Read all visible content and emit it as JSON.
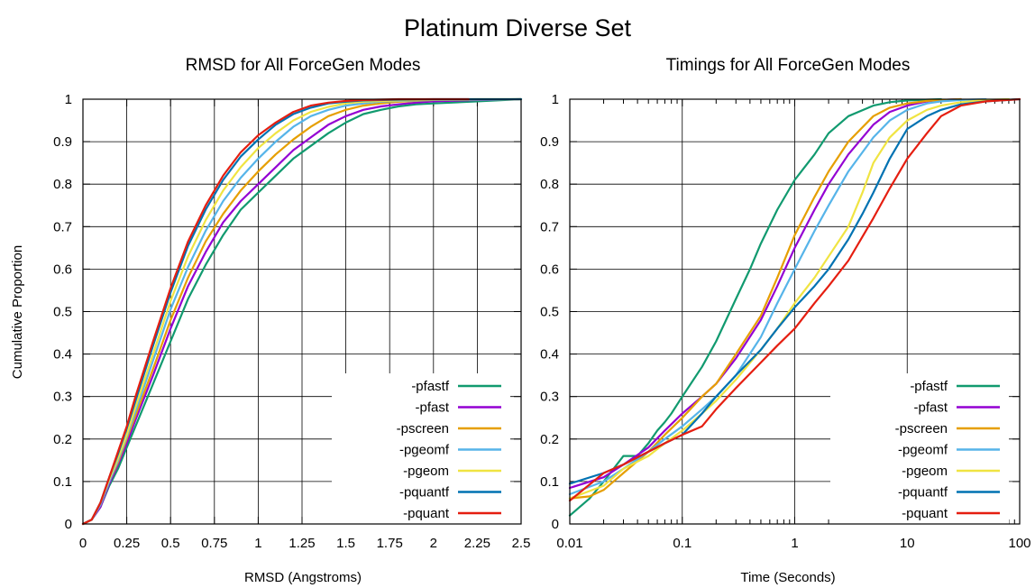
{
  "figure": {
    "title": "Platinum Diverse Set"
  },
  "chart_data": [
    {
      "type": "line",
      "title": "RMSD for All ForceGen Modes",
      "xlabel": "RMSD (Angstroms)",
      "ylabel": "Cumulative Proportion",
      "xscale": "linear",
      "xlim": [
        0,
        2.5
      ],
      "ylim": [
        0,
        1
      ],
      "xticks": [
        0,
        0.25,
        0.5,
        0.75,
        1,
        1.25,
        1.5,
        1.75,
        2,
        2.25,
        2.5
      ],
      "xticklabels": [
        "0",
        "0.25",
        "0.5",
        "0.75",
        "1",
        "1.25",
        "1.5",
        "1.75",
        "2",
        "2.25",
        "2.5"
      ],
      "yticks": [
        0,
        0.1,
        0.2,
        0.3,
        0.4,
        0.5,
        0.6,
        0.7,
        0.8,
        0.9,
        1
      ],
      "yticklabels": [
        "0",
        "0.1",
        "0.2",
        "0.3",
        "0.4",
        "0.5",
        "0.6",
        "0.7",
        "0.8",
        "0.9",
        "1"
      ],
      "grid": true,
      "legend_position": "bottom-right",
      "series": [
        {
          "name": "-pfastf",
          "color": "#119a6f",
          "x": [
            0,
            0.05,
            0.1,
            0.15,
            0.2,
            0.25,
            0.3,
            0.4,
            0.5,
            0.6,
            0.7,
            0.8,
            0.9,
            1.0,
            1.1,
            1.2,
            1.3,
            1.4,
            1.5,
            1.6,
            1.7,
            1.8,
            1.9,
            2.0,
            2.25,
            2.5
          ],
          "y": [
            0,
            0.01,
            0.04,
            0.09,
            0.13,
            0.18,
            0.23,
            0.33,
            0.43,
            0.53,
            0.61,
            0.68,
            0.74,
            0.78,
            0.82,
            0.86,
            0.89,
            0.92,
            0.945,
            0.965,
            0.975,
            0.983,
            0.988,
            0.99,
            0.995,
            1.0
          ]
        },
        {
          "name": "-pfast",
          "color": "#9400d3",
          "x": [
            0,
            0.05,
            0.1,
            0.15,
            0.2,
            0.25,
            0.3,
            0.4,
            0.5,
            0.6,
            0.7,
            0.8,
            0.9,
            1.0,
            1.1,
            1.2,
            1.3,
            1.4,
            1.5,
            1.6,
            1.7,
            1.8,
            1.9,
            2.0,
            2.25,
            2.5
          ],
          "y": [
            0,
            0.01,
            0.04,
            0.095,
            0.14,
            0.19,
            0.245,
            0.35,
            0.46,
            0.56,
            0.64,
            0.71,
            0.76,
            0.8,
            0.84,
            0.88,
            0.91,
            0.94,
            0.96,
            0.975,
            0.983,
            0.988,
            0.992,
            0.995,
            0.998,
            1.0
          ]
        },
        {
          "name": "-pscreen",
          "color": "#e69f00",
          "x": [
            0,
            0.05,
            0.1,
            0.15,
            0.2,
            0.25,
            0.3,
            0.4,
            0.5,
            0.6,
            0.7,
            0.8,
            0.9,
            1.0,
            1.1,
            1.2,
            1.3,
            1.4,
            1.5,
            1.6,
            1.7,
            1.8,
            1.9,
            2.0,
            2.25,
            2.5
          ],
          "y": [
            0,
            0.01,
            0.045,
            0.1,
            0.145,
            0.2,
            0.255,
            0.365,
            0.48,
            0.58,
            0.665,
            0.73,
            0.785,
            0.83,
            0.87,
            0.905,
            0.935,
            0.96,
            0.975,
            0.985,
            0.99,
            0.994,
            0.996,
            0.998,
            0.999,
            1.0
          ]
        },
        {
          "name": "-pgeomf",
          "color": "#56b4e9",
          "x": [
            0,
            0.05,
            0.1,
            0.15,
            0.2,
            0.25,
            0.3,
            0.4,
            0.5,
            0.6,
            0.7,
            0.8,
            0.9,
            1.0,
            1.1,
            1.2,
            1.3,
            1.4,
            1.5,
            1.6,
            1.7,
            1.8,
            2.0,
            2.25,
            2.5
          ],
          "y": [
            0,
            0.01,
            0.045,
            0.1,
            0.15,
            0.205,
            0.265,
            0.385,
            0.505,
            0.605,
            0.69,
            0.76,
            0.815,
            0.86,
            0.9,
            0.935,
            0.96,
            0.975,
            0.985,
            0.99,
            0.994,
            0.996,
            0.998,
            0.999,
            1.0
          ]
        },
        {
          "name": "-pgeom",
          "color": "#f0e442",
          "x": [
            0,
            0.05,
            0.1,
            0.15,
            0.2,
            0.25,
            0.3,
            0.4,
            0.5,
            0.6,
            0.7,
            0.8,
            0.9,
            1.0,
            1.1,
            1.2,
            1.3,
            1.4,
            1.5,
            1.6,
            1.8,
            2.0,
            2.25,
            2.5
          ],
          "y": [
            0,
            0.01,
            0.05,
            0.105,
            0.155,
            0.21,
            0.275,
            0.4,
            0.525,
            0.63,
            0.715,
            0.785,
            0.84,
            0.885,
            0.92,
            0.95,
            0.97,
            0.982,
            0.99,
            0.994,
            0.997,
            0.999,
            1.0,
            1.0
          ]
        },
        {
          "name": "-pquantf",
          "color": "#0072b2",
          "x": [
            0,
            0.05,
            0.1,
            0.15,
            0.2,
            0.25,
            0.3,
            0.4,
            0.5,
            0.6,
            0.7,
            0.8,
            0.9,
            1.0,
            1.1,
            1.2,
            1.3,
            1.4,
            1.5,
            1.6,
            1.8,
            2.0,
            2.25,
            2.5
          ],
          "y": [
            0,
            0.01,
            0.05,
            0.11,
            0.165,
            0.225,
            0.29,
            0.42,
            0.545,
            0.655,
            0.74,
            0.81,
            0.865,
            0.905,
            0.94,
            0.965,
            0.98,
            0.99,
            0.994,
            0.997,
            0.999,
            1.0,
            1.0,
            1.0
          ]
        },
        {
          "name": "-pquant",
          "color": "#e51e10",
          "x": [
            0,
            0.05,
            0.1,
            0.15,
            0.2,
            0.25,
            0.3,
            0.4,
            0.5,
            0.6,
            0.7,
            0.8,
            0.9,
            1.0,
            1.1,
            1.2,
            1.3,
            1.4,
            1.5,
            1.6,
            1.8,
            2.0,
            2.2
          ],
          "y": [
            0,
            0.01,
            0.05,
            0.11,
            0.17,
            0.23,
            0.3,
            0.43,
            0.555,
            0.665,
            0.75,
            0.82,
            0.875,
            0.915,
            0.945,
            0.97,
            0.985,
            0.992,
            0.996,
            0.998,
            1.0,
            1.0,
            1.0
          ]
        }
      ]
    },
    {
      "type": "line",
      "title": "Timings for All ForceGen Modes",
      "xlabel": "Time (Seconds)",
      "ylabel": "",
      "xscale": "log",
      "xlim": [
        0.01,
        100
      ],
      "ylim": [
        0,
        1
      ],
      "xticks": [
        0.01,
        0.1,
        1,
        10,
        100
      ],
      "xticklabels": [
        "0.01",
        "0.1",
        "1",
        "10",
        "100"
      ],
      "yticks": [
        0,
        0.1,
        0.2,
        0.3,
        0.4,
        0.5,
        0.6,
        0.7,
        0.8,
        0.9,
        1
      ],
      "yticklabels": [
        "0",
        "0.1",
        "0.2",
        "0.3",
        "0.4",
        "0.5",
        "0.6",
        "0.7",
        "0.8",
        "0.9",
        "1"
      ],
      "grid": true,
      "legend_position": "bottom-right",
      "series": [
        {
          "name": "-pfastf",
          "color": "#119a6f",
          "x": [
            0.01,
            0.015,
            0.02,
            0.03,
            0.04,
            0.05,
            0.06,
            0.07,
            0.08,
            0.1,
            0.15,
            0.2,
            0.3,
            0.4,
            0.5,
            0.7,
            1,
            1.5,
            2,
            3,
            5,
            7,
            10,
            20
          ],
          "y": [
            0.02,
            0.06,
            0.1,
            0.16,
            0.16,
            0.19,
            0.22,
            0.24,
            0.26,
            0.3,
            0.37,
            0.43,
            0.53,
            0.6,
            0.66,
            0.74,
            0.81,
            0.87,
            0.92,
            0.96,
            0.985,
            0.993,
            0.997,
            1.0
          ]
        },
        {
          "name": "-pfast",
          "color": "#9400d3",
          "x": [
            0.01,
            0.02,
            0.03,
            0.05,
            0.07,
            0.1,
            0.15,
            0.2,
            0.3,
            0.5,
            0.7,
            1,
            1.5,
            2,
            3,
            5,
            7,
            10,
            15,
            20,
            30
          ],
          "y": [
            0.085,
            0.11,
            0.14,
            0.18,
            0.22,
            0.26,
            0.3,
            0.33,
            0.39,
            0.48,
            0.56,
            0.65,
            0.74,
            0.8,
            0.87,
            0.94,
            0.97,
            0.985,
            0.995,
            0.998,
            1.0
          ]
        },
        {
          "name": "-pscreen",
          "color": "#e69f00",
          "x": [
            0.01,
            0.015,
            0.02,
            0.03,
            0.05,
            0.07,
            0.1,
            0.15,
            0.2,
            0.3,
            0.5,
            0.7,
            1,
            1.5,
            2,
            3,
            5,
            7,
            10,
            15,
            20,
            30
          ],
          "y": [
            0.06,
            0.065,
            0.08,
            0.12,
            0.17,
            0.21,
            0.25,
            0.3,
            0.33,
            0.4,
            0.49,
            0.58,
            0.68,
            0.77,
            0.83,
            0.9,
            0.96,
            0.98,
            0.99,
            0.996,
            0.998,
            1.0
          ]
        },
        {
          "name": "-pgeomf",
          "color": "#56b4e9",
          "x": [
            0.01,
            0.02,
            0.03,
            0.05,
            0.07,
            0.1,
            0.15,
            0.2,
            0.3,
            0.5,
            0.7,
            1,
            1.5,
            2,
            3,
            5,
            7,
            10,
            15,
            20,
            30,
            50
          ],
          "y": [
            0.07,
            0.1,
            0.13,
            0.17,
            0.2,
            0.23,
            0.27,
            0.3,
            0.35,
            0.44,
            0.52,
            0.6,
            0.69,
            0.75,
            0.83,
            0.91,
            0.95,
            0.975,
            0.99,
            0.995,
            0.998,
            1.0
          ]
        },
        {
          "name": "-pgeom",
          "color": "#f0e442",
          "x": [
            0.01,
            0.02,
            0.03,
            0.05,
            0.07,
            0.1,
            0.15,
            0.2,
            0.3,
            0.5,
            0.7,
            1,
            1.5,
            2,
            3,
            4,
            5,
            7,
            10,
            15,
            20,
            30,
            50,
            80
          ],
          "y": [
            0.06,
            0.09,
            0.13,
            0.16,
            0.19,
            0.22,
            0.26,
            0.29,
            0.34,
            0.41,
            0.46,
            0.52,
            0.58,
            0.63,
            0.7,
            0.78,
            0.85,
            0.91,
            0.95,
            0.975,
            0.985,
            0.993,
            0.998,
            1.0
          ]
        },
        {
          "name": "-pquantf",
          "color": "#0072b2",
          "x": [
            0.01,
            0.02,
            0.03,
            0.05,
            0.07,
            0.1,
            0.15,
            0.2,
            0.3,
            0.5,
            0.7,
            1,
            1.5,
            2,
            3,
            4,
            5,
            7,
            10,
            15,
            20,
            30,
            50,
            100
          ],
          "y": [
            0.095,
            0.12,
            0.14,
            0.17,
            0.19,
            0.21,
            0.26,
            0.3,
            0.35,
            0.41,
            0.46,
            0.51,
            0.56,
            0.6,
            0.67,
            0.73,
            0.78,
            0.86,
            0.93,
            0.96,
            0.975,
            0.988,
            0.995,
            1.0
          ]
        },
        {
          "name": "-pquant",
          "color": "#e51e10",
          "x": [
            0.01,
            0.02,
            0.03,
            0.05,
            0.07,
            0.1,
            0.15,
            0.2,
            0.3,
            0.5,
            0.7,
            1,
            1.5,
            2,
            3,
            5,
            7,
            10,
            15,
            20,
            30,
            50,
            100
          ],
          "y": [
            0.055,
            0.12,
            0.14,
            0.17,
            0.19,
            0.21,
            0.23,
            0.27,
            0.32,
            0.38,
            0.42,
            0.46,
            0.52,
            0.56,
            0.62,
            0.72,
            0.79,
            0.86,
            0.92,
            0.96,
            0.985,
            0.995,
            1.0
          ]
        }
      ]
    }
  ]
}
